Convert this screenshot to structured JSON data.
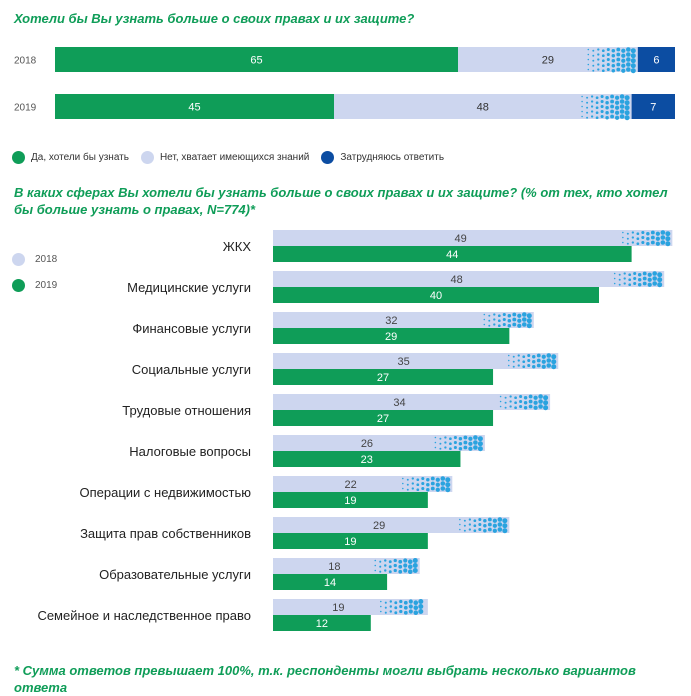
{
  "colors": {
    "green": "#0f9d58",
    "light": "#cdd6ef",
    "dark_blue": "#0c4da2",
    "dots": "#2aa3df",
    "title": "#0f9d58"
  },
  "footnote": "* Сумма ответов превышает 100%, т.к. респонденты могли выбрать несколько вариантов ответа",
  "chart_data": [
    {
      "type": "bar",
      "orientation": "horizontal-stacked",
      "title": "Хотели бы Вы узнать больше о своих правах и их защите?",
      "categories": [
        "2018",
        "2019"
      ],
      "series": [
        {
          "name": "Да, хотели бы узнать",
          "values": [
            65,
            45
          ]
        },
        {
          "name": "Нет, хватает имеющихся знаний",
          "values": [
            29,
            48
          ]
        },
        {
          "name": "Затрудняюсь ответить",
          "values": [
            6,
            7
          ]
        }
      ],
      "xlim": [
        0,
        100
      ],
      "legend_position": "bottom-left"
    },
    {
      "type": "bar",
      "orientation": "horizontal-grouped",
      "title": "В каких сферах Вы хотели бы узнать больше о своих правах и их защите? (% от тех, кто хотел бы больше узнать о правах, N=774)*",
      "categories": [
        "ЖКХ",
        "Медицинские услуги",
        "Финансовые услуги",
        "Социальные услуги",
        "Трудовые отношения",
        "Налоговые вопросы",
        "Операции с недвижимостью",
        "Защита прав собственников",
        "Образовательные услуги",
        "Семейное и наследственное право"
      ],
      "series": [
        {
          "name": "2018",
          "values": [
            49,
            48,
            32,
            35,
            34,
            26,
            22,
            29,
            18,
            19
          ]
        },
        {
          "name": "2019",
          "values": [
            44,
            40,
            29,
            27,
            27,
            23,
            19,
            19,
            14,
            12
          ]
        }
      ],
      "legend_position": "top-left"
    }
  ]
}
